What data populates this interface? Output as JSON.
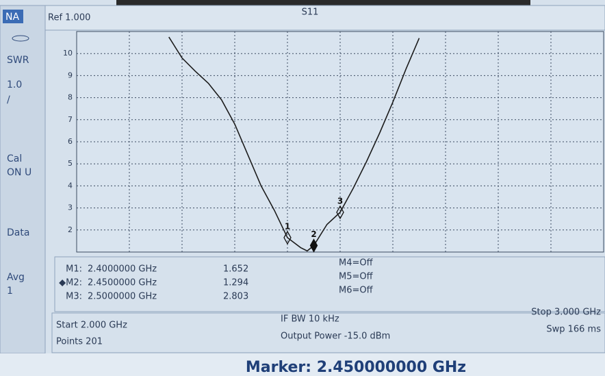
{
  "sidebar": {
    "mode": "NA",
    "format": "SWR",
    "scale": "1.0",
    "slash": "/",
    "cal": "Cal",
    "cal_state": "ON U",
    "data": "Data",
    "avg": "Avg",
    "avg_count": "1"
  },
  "header": {
    "ref": "Ref 1.000",
    "trace": "S11"
  },
  "chart_data": {
    "type": "line",
    "x": [
      2.175,
      2.2,
      2.225,
      2.25,
      2.275,
      2.3,
      2.325,
      2.35,
      2.375,
      2.4,
      2.425,
      2.4375,
      2.45,
      2.475,
      2.5,
      2.525,
      2.55,
      2.575,
      2.6,
      2.625,
      2.65
    ],
    "series": [
      {
        "color": "#1c1c1c",
        "values": [
          10.75,
          9.8,
          9.2,
          8.65,
          7.9,
          6.8,
          5.4,
          4.0,
          2.9,
          1.652,
          1.2,
          1.05,
          1.294,
          2.25,
          2.803,
          3.9,
          5.1,
          6.4,
          7.8,
          9.3,
          10.7
        ]
      }
    ],
    "xlim": [
      2,
      3
    ],
    "ylim": [
      1,
      11
    ],
    "yticks": [
      2,
      3,
      4,
      5,
      6,
      7,
      8,
      9,
      10
    ],
    "grid": true,
    "markers": [
      {
        "label": "1",
        "name": "M1:",
        "frequency": {
          "value": 2.4,
          "label": "2.4000000 GHz"
        },
        "value": 1.652
      },
      {
        "label": "2",
        "name": "◆M2:",
        "frequency": {
          "value": 2.45,
          "label": "2.4500000 GHz"
        },
        "value": 1.294
      },
      {
        "label": "3",
        "name": "M3:",
        "frequency": {
          "value": 2.5,
          "label": "2.5000000 GHz"
        },
        "value": 2.803
      }
    ],
    "active_marker": 1,
    "other_markers": [
      "M4=Off",
      "M5=Off",
      "M6=Off"
    ]
  },
  "settings": {
    "start": "Start 2.000 GHz",
    "points": "Points 201",
    "if_bw": "IF BW 10 kHz",
    "power": "Output Power -15.0 dBm",
    "stop": "Stop 3.000 GHz",
    "sweep": "Swp 166 ms"
  },
  "footer": "Marker: 2.450000000 GHz"
}
